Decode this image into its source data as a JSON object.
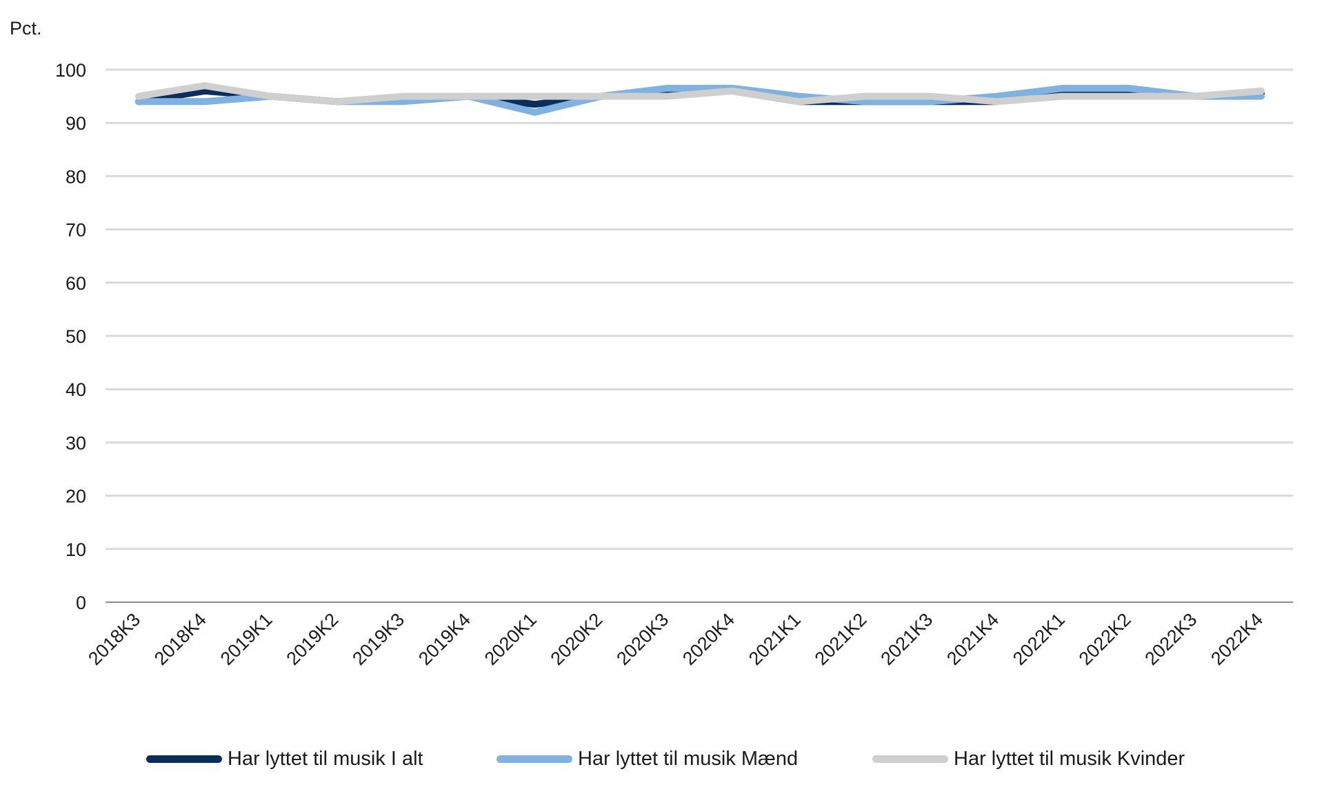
{
  "chart_data": {
    "type": "line",
    "ylabel": "Pct.",
    "ylim": [
      0,
      100
    ],
    "yticks": [
      0,
      10,
      20,
      30,
      40,
      50,
      60,
      70,
      80,
      90,
      100
    ],
    "grid": true,
    "legend_position": "bottom",
    "categories": [
      "2018K3",
      "2018K4",
      "2019K1",
      "2019K2",
      "2019K3",
      "2019K4",
      "2020K1",
      "2020K2",
      "2020K3",
      "2020K4",
      "2021K1",
      "2021K2",
      "2021K3",
      "2021K4",
      "2022K1",
      "2022K2",
      "2022K3",
      "2022K4"
    ],
    "series": [
      {
        "name": "Har lyttet til musik I alt",
        "color": "#0b2d5b",
        "values": [
          94,
          96,
          95,
          94,
          94.5,
          95,
          93.5,
          95,
          95.5,
          96,
          94,
          94,
          94,
          94,
          95.5,
          95.5,
          95,
          95.5
        ]
      },
      {
        "name": "Har lyttet til musik Mænd",
        "color": "#7fb1e1",
        "values": [
          94,
          94,
          95,
          94,
          94,
          95,
          92,
          95,
          96.5,
          96.5,
          95,
          94,
          94,
          95,
          96.5,
          96.5,
          95,
          95
        ]
      },
      {
        "name": "Har lyttet til musik Kvinder",
        "color": "#cfcfcf",
        "values": [
          95,
          97,
          95,
          94,
          95,
          95,
          95,
          95,
          95,
          96,
          94,
          95,
          95,
          94,
          95,
          95,
          95,
          96
        ]
      }
    ]
  }
}
